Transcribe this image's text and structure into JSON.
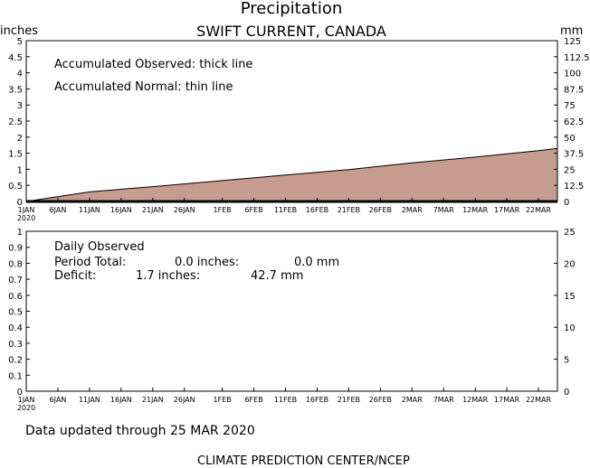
{
  "title": "Precipitation",
  "subtitle": "SWIFT CURRENT, CANADA",
  "units_left": "inches",
  "units_right": "mm",
  "footer_updated": "Data updated through 25 MAR 2020",
  "footer_credit": "CLIMATE PREDICTION CENTER/NCEP",
  "colors": {
    "fill": "#c79c90",
    "line": "#000000",
    "frame": "#000000"
  },
  "x_axis": {
    "labels": [
      "1JAN",
      "6JAN",
      "11JAN",
      "16JAN",
      "21JAN",
      "26JAN",
      "1FEB",
      "6FEB",
      "11FEB",
      "16FEB",
      "21FEB",
      "26FEB",
      "2MAR",
      "7MAR",
      "12MAR",
      "17MAR",
      "22MAR"
    ],
    "day_index": [
      0,
      5,
      10,
      15,
      20,
      25,
      31,
      36,
      41,
      46,
      51,
      56,
      61,
      66,
      71,
      76,
      81
    ],
    "year_label": "2020",
    "day_range": [
      0,
      84
    ]
  },
  "chart_data": [
    {
      "type": "area",
      "title": "",
      "ylabel": "inches",
      "y2label": "mm",
      "ylim": [
        0,
        5
      ],
      "y2lim": [
        0,
        125
      ],
      "yticks": [
        "0",
        "0.5",
        "1",
        "1.5",
        "2",
        "2.5",
        "3",
        "3.5",
        "4",
        "4.5",
        "5"
      ],
      "y2ticks": [
        "0",
        "12.5",
        "25",
        "37.5",
        "50",
        "62.5",
        "75",
        "87.5",
        "100",
        "112.5",
        "125"
      ],
      "annotations": [
        "Accumulated Observed: thick line",
        "Accumulated Normal: thin line"
      ],
      "series": [
        {
          "name": "Accumulated Normal",
          "x": [
            0,
            10,
            20,
            31,
            41,
            51,
            61,
            71,
            81,
            84
          ],
          "values": [
            0,
            0.3,
            0.46,
            0.65,
            0.82,
            0.99,
            1.2,
            1.38,
            1.58,
            1.65
          ]
        },
        {
          "name": "Accumulated Observed",
          "x": [
            0,
            84
          ],
          "values": [
            0,
            0
          ]
        }
      ]
    },
    {
      "type": "bar",
      "title": "",
      "ylabel": "inches",
      "y2label": "mm",
      "ylim": [
        0,
        1
      ],
      "y2lim": [
        0,
        25
      ],
      "yticks": [
        "0",
        "0.1",
        "0.2",
        "0.3",
        "0.4",
        "0.5",
        "0.6",
        "0.7",
        "0.8",
        "0.9",
        "1"
      ],
      "y2ticks": [
        "0",
        "5",
        "10",
        "15",
        "20",
        "25"
      ],
      "annotations": {
        "heading": "Daily Observed",
        "total_label": "Period Total:",
        "total_in": "0.0 inches:",
        "total_mm": "0.0 mm",
        "deficit_label": "Deficit:",
        "deficit_in": "1.7 inches:",
        "deficit_mm": "42.7 mm"
      },
      "series": [
        {
          "name": "Daily Observed",
          "values": []
        }
      ]
    }
  ]
}
